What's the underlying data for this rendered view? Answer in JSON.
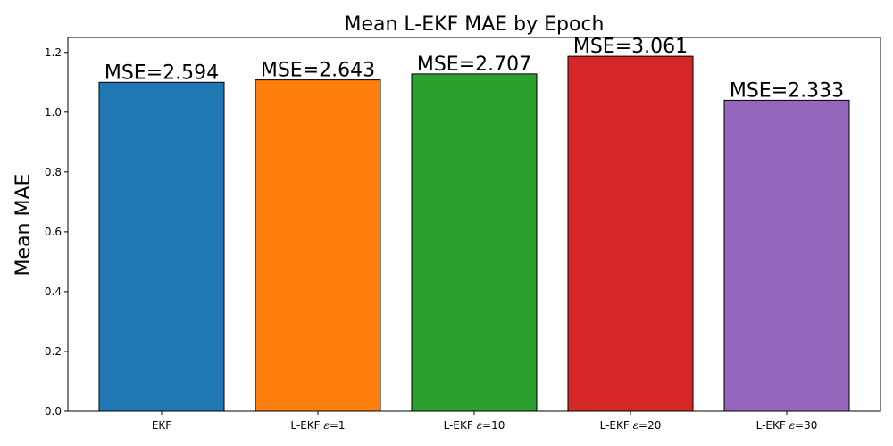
{
  "chart_data": {
    "type": "bar",
    "title": "Mean L-EKF MAE by Epoch",
    "xlabel": "",
    "ylabel": "Mean MAE",
    "categories": [
      "EKF",
      "L-EKF ε=1",
      "L-EKF ε=10",
      "L-EKF ε=20",
      "L-EKF ε=30"
    ],
    "category_parts": [
      {
        "prefix": "EKF",
        "epsilon": "",
        "suffix": ""
      },
      {
        "prefix": "L-EKF ",
        "epsilon": "ε",
        "suffix": "=1"
      },
      {
        "prefix": "L-EKF ",
        "epsilon": "ε",
        "suffix": "=10"
      },
      {
        "prefix": "L-EKF ",
        "epsilon": "ε",
        "suffix": "=20"
      },
      {
        "prefix": "L-EKF ",
        "epsilon": "ε",
        "suffix": "=30"
      }
    ],
    "values": [
      1.1,
      1.108,
      1.128,
      1.187,
      1.04
    ],
    "data_labels": [
      "MSE=2.594",
      "MSE=2.643",
      "MSE=2.707",
      "MSE=3.061",
      "MSE=2.333"
    ],
    "colors": [
      "#1f77b4",
      "#ff7f0e",
      "#2ca02c",
      "#d62728",
      "#9467bd"
    ],
    "ylim": [
      0,
      1.25
    ],
    "yticks": [
      0.0,
      0.2,
      0.4,
      0.6,
      0.8,
      1.0,
      1.2
    ],
    "ytick_labels": [
      "0.0",
      "0.2",
      "0.4",
      "0.6",
      "0.8",
      "1.0",
      "1.2"
    ],
    "grid": false,
    "legend": "none"
  }
}
